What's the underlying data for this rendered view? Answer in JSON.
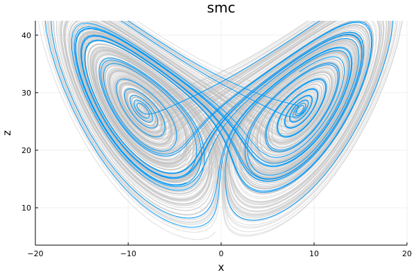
{
  "chart_data": {
    "type": "line",
    "title": "smc",
    "xlabel": "x",
    "ylabel": "z",
    "xlim": [
      -20,
      20
    ],
    "ylim": [
      3.5,
      42.5
    ],
    "x_ticks": [
      -20,
      -10,
      0,
      10,
      20
    ],
    "y_ticks": [
      10,
      20,
      30,
      40
    ],
    "x_tick_labels": [
      "−20",
      "−10",
      "0",
      "10",
      "20"
    ],
    "y_tick_labels": [
      "10",
      "20",
      "30",
      "40"
    ],
    "grid": true,
    "legend": "none",
    "colors": {
      "highlight": "#009AFA",
      "ensemble": "#BDBDBD",
      "grid": "#EBEBEB",
      "axis": "#000000"
    },
    "series": [
      {
        "role": "highlight",
        "x_start": 10.0,
        "z_start": 10.0,
        "x_range": [
          -15.5,
          16.5
        ],
        "z_range": [
          5.8,
          40.8
        ]
      },
      {
        "role": "ensemble",
        "x_start": 9.0,
        "z_start": 10.0,
        "x_range": [
          -14.5,
          15.5
        ],
        "z_range": [
          7.0,
          40.0
        ]
      }
    ]
  }
}
